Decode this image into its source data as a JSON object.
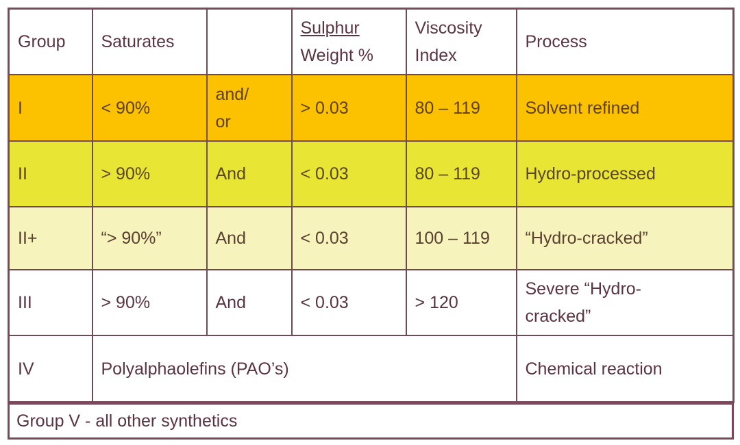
{
  "header": {
    "group": "Group",
    "saturates": "Saturates",
    "conjunction": "",
    "sulphur_line1": "Sulphur",
    "sulphur_line2": "Weight %",
    "viscosity_line1": "Viscosity",
    "viscosity_line2": "Index",
    "process": "Process"
  },
  "rows": [
    {
      "group": "I",
      "saturates": "< 90%",
      "conj_line1": "and/",
      "conj_line2": "or",
      "sulphur": "> 0.03",
      "viscosity": "80 – 119",
      "process": "Solvent refined",
      "color": "#fcc200"
    },
    {
      "group": "II",
      "saturates": "> 90%",
      "conj": "And",
      "sulphur": "< 0.03",
      "viscosity": "80 – 119",
      "process": "Hydro-processed",
      "color": "#e9e535"
    },
    {
      "group": "II+",
      "saturates": "“> 90%”",
      "conj": "And",
      "sulphur": "< 0.03",
      "viscosity": "100 – 119",
      "process": "“Hydro-cracked”",
      "color": "#f6f3bd"
    },
    {
      "group": "III",
      "saturates": "> 90%",
      "conj": "And",
      "sulphur": "< 0.03",
      "viscosity": "> 120",
      "process_line1": "Severe “Hydro-",
      "process_line2": "cracked”",
      "color": "#ffffff"
    },
    {
      "group": "IV",
      "description": "Polyalphaolefins (PAO’s)",
      "process": "Chemical reaction",
      "color": "#ffffff"
    }
  ],
  "footer": "Group V - all other synthetics"
}
